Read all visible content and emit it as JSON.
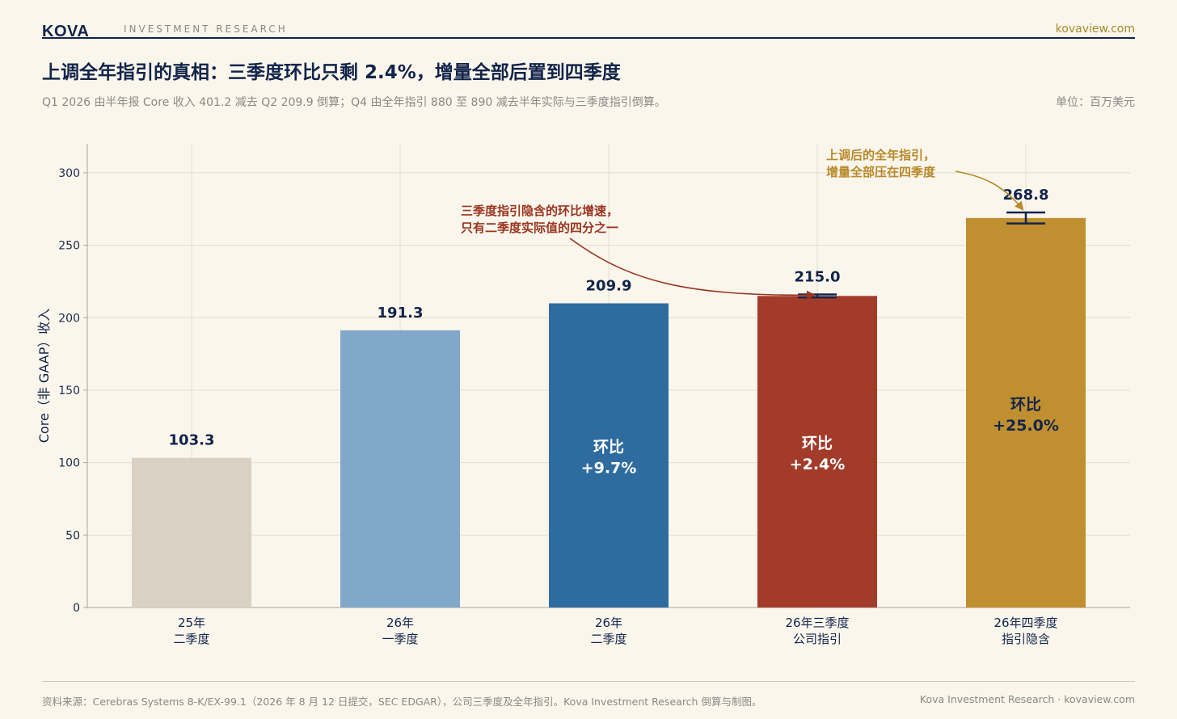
{
  "header": {
    "brand": "KOVA",
    "section": "INVESTMENT RESEARCH",
    "site": "kovaview.com"
  },
  "title": "上调全年指引的真相：三季度环比只剩 2.4%，增量全部后置到四季度",
  "subtitle": "Q1 2026 由半年报 Core 收入 401.2 减去 Q2 209.9 倒算；Q4 由全年指引 880 至 890 减去半年实际与三季度指引倒算。",
  "unit_label": "单位：百万美元",
  "chart_data": {
    "type": "bar",
    "ylabel": "Core（非 GAAP）收入",
    "ylim": [
      0,
      320
    ],
    "yticks": [
      0,
      50,
      100,
      150,
      200,
      250,
      300
    ],
    "grid": true,
    "categories": [
      [
        "25年",
        "二季度"
      ],
      [
        "26年",
        "一季度"
      ],
      [
        "26年",
        "二季度"
      ],
      [
        "26年三季度",
        "公司指引"
      ],
      [
        "26年四季度",
        "指引隐含"
      ]
    ],
    "values": [
      103.3,
      191.3,
      209.9,
      215.0,
      268.8
    ],
    "value_labels": [
      "103.3",
      "191.3",
      "209.9",
      "215.0",
      "268.8"
    ],
    "colors": [
      "#d9d1c3",
      "#81a8c9",
      "#2e6ca0",
      "#a33b2a",
      "#c09030"
    ],
    "range_bars": [
      null,
      null,
      null,
      [
        214.0,
        216.0
      ],
      [
        265.0,
        272.6
      ]
    ],
    "inner_labels": [
      null,
      null,
      [
        "环比",
        "+9.7%"
      ],
      [
        "环比",
        "+2.4%"
      ],
      [
        "环比",
        "+25.0%"
      ]
    ],
    "annotations": [
      {
        "lines": [
          "三季度指引隐含的环比增速，",
          "只有二季度实际值的四分之一"
        ],
        "color": "#9a3520",
        "target_index": 3
      },
      {
        "lines": [
          "上调后的全年指引，",
          "增量全部压在四季度"
        ],
        "color": "#b8892a",
        "target_index": 4
      }
    ]
  },
  "footer": {
    "source": "资料来源：Cerebras Systems 8-K/EX-99.1（2026 年 8 月 12 日提交，SEC EDGAR），公司三季度及全年指引。Kova Investment Research 倒算与制图。",
    "right": "Kova Investment Research · kovaview.com"
  }
}
